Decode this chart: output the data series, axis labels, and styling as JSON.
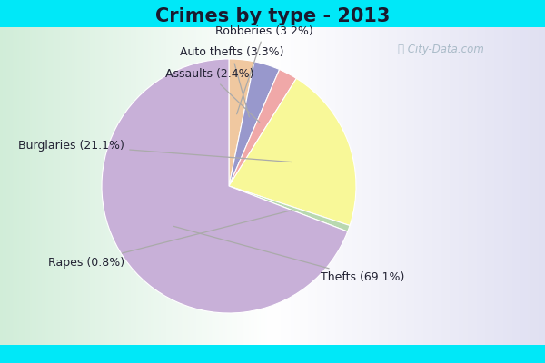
{
  "title": "Crimes by type - 2013",
  "ordered_labels": [
    "Robberies",
    "Auto thefts",
    "Assaults",
    "Burglaries",
    "Rapes",
    "Thefts"
  ],
  "ordered_values": [
    3.2,
    3.3,
    2.4,
    21.1,
    0.8,
    69.1
  ],
  "ordered_colors": [
    "#f0c8a0",
    "#9898cc",
    "#f0a8a8",
    "#f8f898",
    "#b8d8b0",
    "#c8b0d8"
  ],
  "background_top": "#00e8f8",
  "title_fontsize": 15,
  "label_fontsize": 9,
  "startangle": 90,
  "watermark": "City-Data.com"
}
